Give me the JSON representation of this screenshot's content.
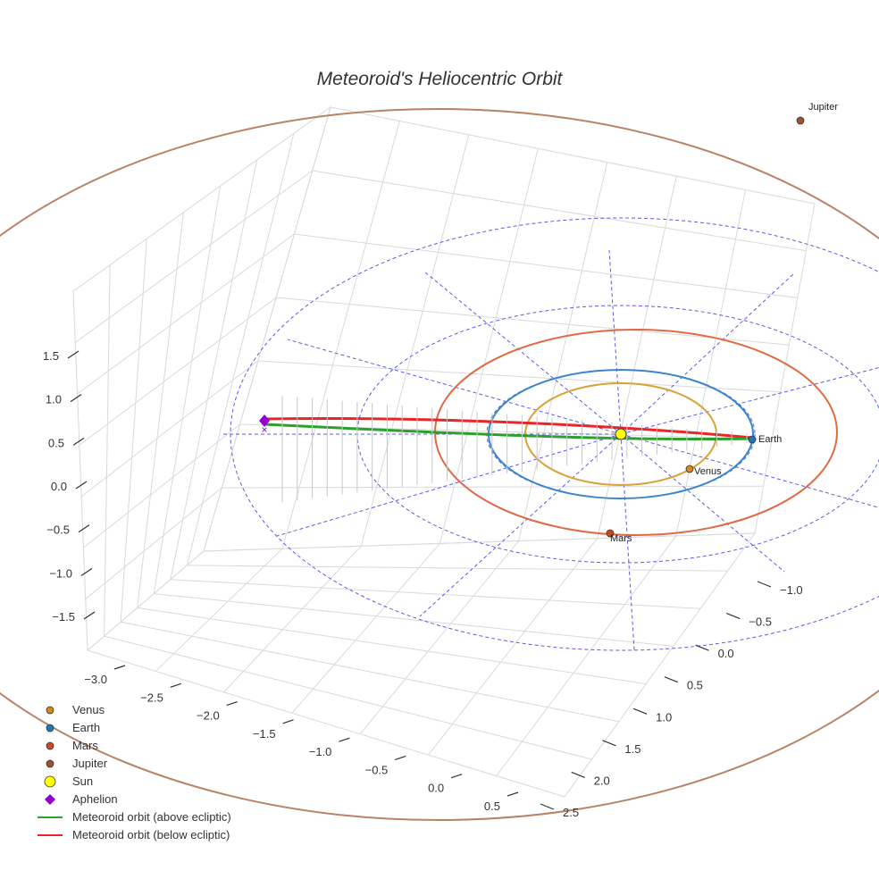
{
  "chart_data": {
    "type": "scatter3d",
    "title": "Meteoroid's Heliocentric Orbit",
    "axes": {
      "x": {
        "label": "",
        "ticks": [
          "−3.0",
          "−2.5",
          "−2.0",
          "−1.5",
          "−1.0",
          "−0.5",
          "0.0",
          "0.5"
        ],
        "range": [
          -3.2,
          0.7
        ]
      },
      "y": {
        "label": "",
        "ticks": [
          "−1.0",
          "−0.5",
          "0.0",
          "0.5",
          "1.0",
          "1.5",
          "2.0",
          "2.5"
        ],
        "range": [
          -1.2,
          2.7
        ]
      },
      "z": {
        "label": "",
        "ticks": [
          "1.5",
          "1.0",
          "0.5",
          "0.0",
          "−0.5",
          "−1.0",
          "−1.5"
        ],
        "range": [
          -1.8,
          1.9
        ]
      }
    },
    "planets": [
      {
        "name": "Venus",
        "label": "Venus",
        "color": "#d4891f",
        "orbit_color": "#d9a23a",
        "orbit_radius_au": 0.72
      },
      {
        "name": "Earth",
        "label": "Earth",
        "color": "#1f77b4",
        "orbit_color": "#3a86c8",
        "orbit_radius_au": 1.0
      },
      {
        "name": "Mars",
        "label": "Mars",
        "color": "#cc4a1c",
        "orbit_color": "#e06a44",
        "orbit_radius_au": 1.52
      },
      {
        "name": "Jupiter",
        "label": "Jupiter",
        "color": "#a0522d",
        "orbit_color": "#b88366",
        "orbit_radius_au": 5.2
      }
    ],
    "sun": {
      "name": "Sun",
      "color": "#ffff00"
    },
    "aphelion": {
      "name": "Aphelion",
      "color": "#9400d3"
    },
    "series": [
      {
        "name": "Meteoroid orbit (above ecliptic)",
        "color": "#2ca02c"
      },
      {
        "name": "Meteoroid orbit (below ecliptic)",
        "color": "#e8262a"
      }
    ],
    "ecliptic_grid_color": "#5a5aee",
    "legend": [
      {
        "label": "Venus",
        "symbol": "dot",
        "color": "#d4891f"
      },
      {
        "label": "Earth",
        "symbol": "dot",
        "color": "#1f77b4"
      },
      {
        "label": "Mars",
        "symbol": "dot",
        "color": "#cc4a1c"
      },
      {
        "label": "Jupiter",
        "symbol": "dot",
        "color": "#a0522d"
      },
      {
        "label": "Sun",
        "symbol": "sun",
        "color": "#ffff00"
      },
      {
        "label": "Aphelion",
        "symbol": "diamond",
        "color": "#9400d3"
      },
      {
        "label": "Meteoroid orbit (above ecliptic)",
        "symbol": "line",
        "color": "#2ca02c"
      },
      {
        "label": "Meteoroid orbit (below ecliptic)",
        "symbol": "line",
        "color": "#e8262a"
      }
    ],
    "legend_position": "bottom-left"
  }
}
